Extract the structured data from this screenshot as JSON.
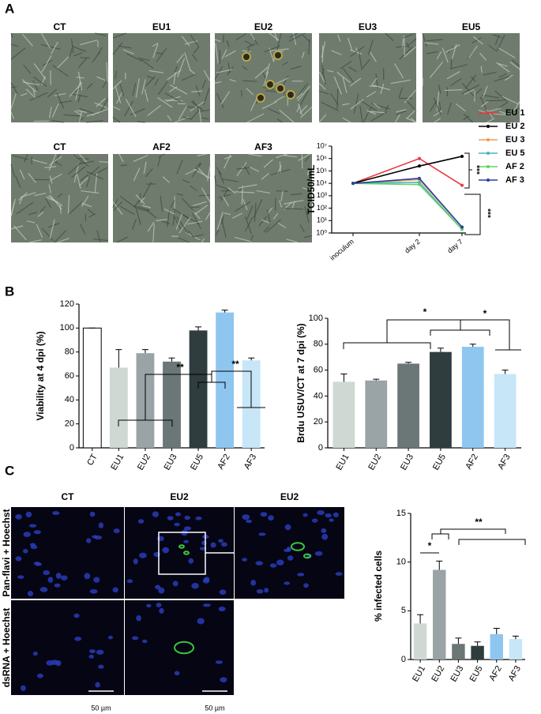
{
  "panels": {
    "letters": [
      "A",
      "B",
      "C"
    ],
    "a_images": {
      "row1": [
        "CT",
        "EU1",
        "EU2",
        "EU3",
        "EU5"
      ],
      "row2": [
        "CT",
        "AF2",
        "AF3"
      ]
    },
    "c_images": {
      "columns": [
        "CT",
        "EU2",
        "EU2"
      ],
      "rows": [
        "Pan-flavi + Hoechst",
        "dsRNA + Hoechst"
      ],
      "scale_bar": [
        "50 µm",
        "50 µm"
      ]
    }
  },
  "chart_data": [
    {
      "type": "line",
      "y_label": "TCID50/mL",
      "log_scale": true,
      "categories": [
        "inoculum",
        "day 2",
        "day 7"
      ],
      "series": [
        {
          "name": "EU 1",
          "color": "#e8383d",
          "values": [
            10000,
            1000000,
            7000
          ]
        },
        {
          "name": "EU 2",
          "color": "#000000",
          "values": [
            10000,
            250000,
            1500000
          ]
        },
        {
          "name": "EU 3",
          "color": "#f39c4a",
          "values": [
            10000,
            20000,
            3
          ]
        },
        {
          "name": "EU 5",
          "color": "#45b5c4",
          "values": [
            10000,
            12000,
            2
          ]
        },
        {
          "name": "AF 2",
          "color": "#5fd35f",
          "values": [
            10000,
            8000,
            2
          ]
        },
        {
          "name": "AF 3",
          "color": "#2b3ea0",
          "values": [
            10000,
            25000,
            3
          ]
        }
      ],
      "ylim": [
        1,
        10000000
      ],
      "yticks": [
        {
          "value": 1,
          "label": "10⁰"
        },
        {
          "value": 10,
          "label": "10¹"
        },
        {
          "value": 100,
          "label": "10²"
        },
        {
          "value": 1000,
          "label": "10³"
        },
        {
          "value": 10000,
          "label": "10⁴"
        },
        {
          "value": 100000,
          "label": "10⁵"
        },
        {
          "value": 1000000,
          "label": "10⁶"
        },
        {
          "value": 10000000,
          "label": "10⁷"
        }
      ],
      "annotations": [
        "***",
        "***"
      ]
    },
    {
      "type": "bar",
      "y_label": "Viability at 4 dpi (%)",
      "categories": [
        "CT",
        "EU1",
        "EU2",
        "EU3",
        "EU5",
        "AF2",
        "AF3"
      ],
      "values": [
        100,
        67,
        79,
        72,
        98,
        113,
        73
      ],
      "errors": [
        0,
        15,
        3,
        3,
        3,
        2,
        2
      ],
      "colors": [
        "#ffffff",
        "#cfd8d3",
        "#9aa3a6",
        "#6b7676",
        "#2f3d3f",
        "#8ec6f0",
        "#c7e6f8"
      ],
      "ylim": [
        0,
        120
      ],
      "yticks": [
        0,
        20,
        40,
        60,
        80,
        100,
        120
      ],
      "annotations": [
        "**",
        "**"
      ]
    },
    {
      "type": "bar",
      "y_label": "Brdu USUV/CT at 7 dpi (%)",
      "categories": [
        "EU1",
        "EU2",
        "EU3",
        "EU5",
        "AF2",
        "AF3"
      ],
      "values": [
        51,
        52,
        65,
        74,
        78,
        57
      ],
      "errors": [
        6,
        1,
        1,
        3,
        2,
        3
      ],
      "colors": [
        "#cfd8d3",
        "#9aa3a6",
        "#6b7676",
        "#2f3d3f",
        "#8ec6f0",
        "#c7e6f8"
      ],
      "ylim": [
        0,
        100
      ],
      "yticks": [
        0,
        20,
        40,
        60,
        80,
        100
      ],
      "annotations": [
        "*",
        "*"
      ]
    },
    {
      "type": "bar",
      "y_label": "% infected cells",
      "categories": [
        "EU1",
        "EU2",
        "EU3",
        "EU5",
        "AF2",
        "AF3"
      ],
      "values": [
        3.7,
        9.2,
        1.6,
        1.4,
        2.6,
        2.1
      ],
      "errors": [
        0.9,
        0.9,
        0.6,
        0.4,
        0.6,
        0.3
      ],
      "colors": [
        "#cfd8d3",
        "#9aa3a6",
        "#6b7676",
        "#2f3d3f",
        "#8ec6f0",
        "#c7e6f8"
      ],
      "ylim": [
        0,
        15
      ],
      "yticks": [
        0,
        5,
        10,
        15
      ],
      "annotations": [
        "*",
        "**"
      ]
    }
  ]
}
